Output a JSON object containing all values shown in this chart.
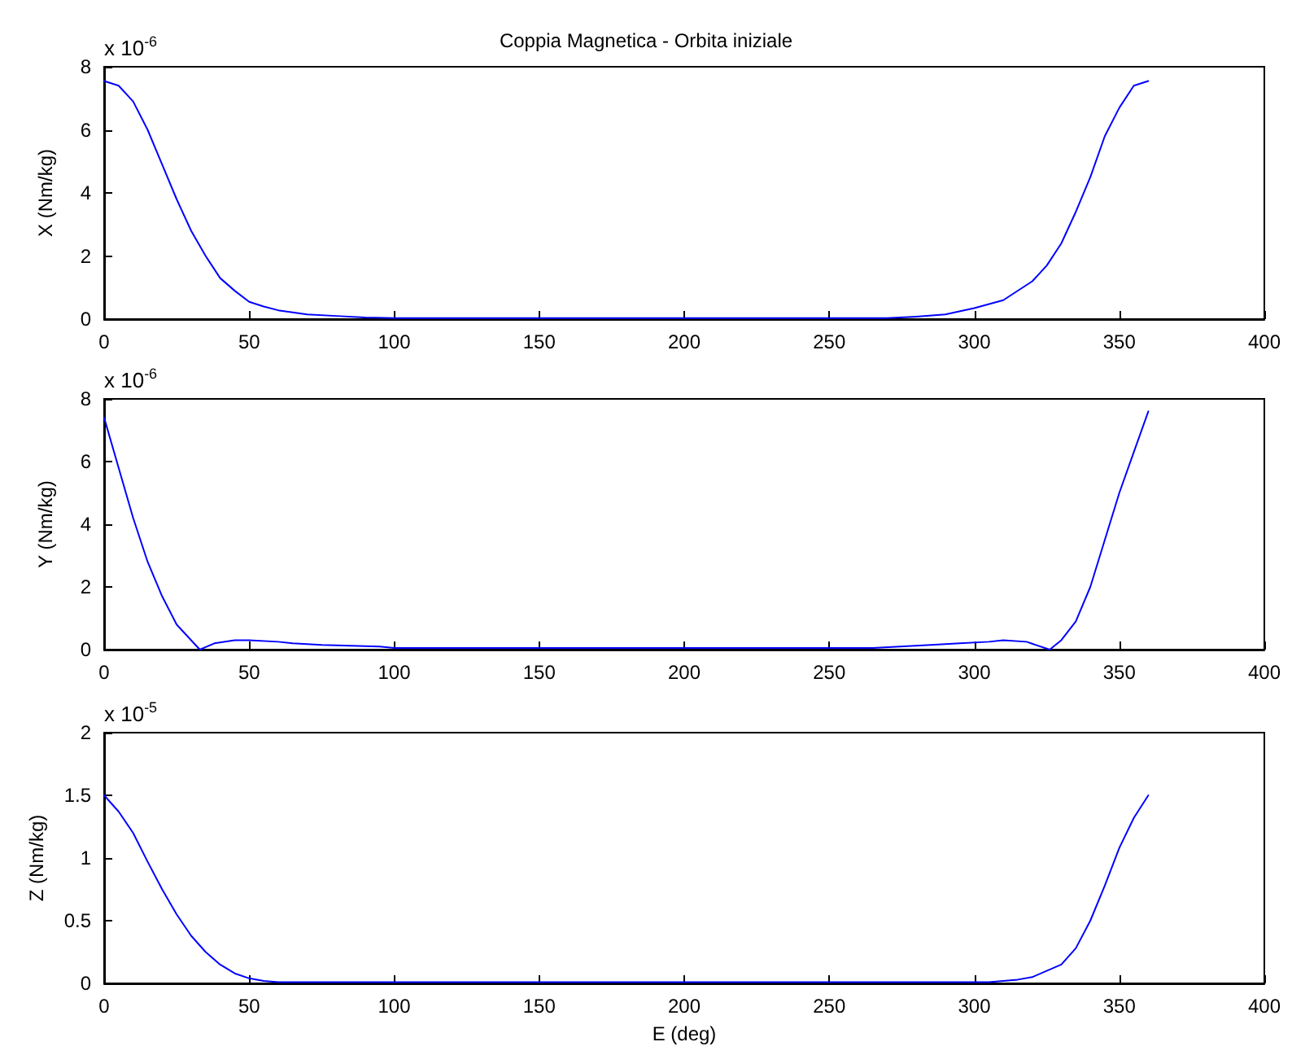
{
  "chart_data": [
    {
      "type": "line",
      "title": "Coppia Magnetica - Orbita iniziale",
      "ylabel": "X (Nm/kg)",
      "annotations": [
        "x 10$^{-6}$"
      ],
      "xlim": [
        0,
        400
      ],
      "xticks": [
        0,
        50,
        100,
        150,
        200,
        250,
        300,
        350,
        400
      ],
      "ylim": [
        0,
        8
      ],
      "yticks": [
        0,
        2,
        4,
        6,
        8
      ],
      "grid": false,
      "marker": "none",
      "line_style": "solid",
      "series": [
        {
          "color": "#0000ff",
          "x": [
            0,
            5,
            10,
            15,
            20,
            25,
            30,
            35,
            40,
            45,
            50,
            55,
            60,
            70,
            80,
            90,
            100,
            150,
            200,
            250,
            270,
            280,
            290,
            300,
            310,
            320,
            325,
            330,
            335,
            340,
            345,
            350,
            355,
            360
          ],
          "values": [
            7.55,
            7.4,
            6.9,
            6.0,
            4.9,
            3.8,
            2.8,
            2.0,
            1.3,
            0.9,
            0.55,
            0.4,
            0.28,
            0.15,
            0.1,
            0.05,
            0.03,
            0.03,
            0.03,
            0.03,
            0.03,
            0.08,
            0.15,
            0.35,
            0.6,
            1.2,
            1.7,
            2.4,
            3.4,
            4.5,
            5.8,
            6.7,
            7.4,
            7.55
          ]
        }
      ]
    },
    {
      "type": "line",
      "ylabel": "Y (Nm/kg)",
      "annotations": [
        "x 10$^{-6}$"
      ],
      "xlim": [
        0,
        400
      ],
      "xticks": [
        0,
        50,
        100,
        150,
        200,
        250,
        300,
        350,
        400
      ],
      "ylim": [
        0,
        8
      ],
      "yticks": [
        0,
        2,
        4,
        6,
        8
      ],
      "grid": false,
      "marker": "none",
      "line_style": "solid",
      "series": [
        {
          "color": "#0000ff",
          "x": [
            0,
            5,
            10,
            15,
            20,
            25,
            30,
            33,
            38,
            45,
            50,
            60,
            65,
            75,
            95,
            100,
            150,
            200,
            250,
            265,
            285,
            295,
            305,
            310,
            318,
            326,
            330,
            335,
            340,
            345,
            350,
            355,
            360
          ],
          "values": [
            7.4,
            5.8,
            4.2,
            2.8,
            1.7,
            0.8,
            0.3,
            0.0,
            0.2,
            0.3,
            0.3,
            0.25,
            0.2,
            0.15,
            0.1,
            0.05,
            0.05,
            0.05,
            0.05,
            0.05,
            0.15,
            0.2,
            0.25,
            0.3,
            0.25,
            0.0,
            0.3,
            0.9,
            2.0,
            3.5,
            5.0,
            6.3,
            7.6
          ]
        }
      ]
    },
    {
      "type": "line",
      "ylabel": "Z (Nm/kg)",
      "xlabel": "E (deg)",
      "annotations": [
        "x 10$^{-5}$"
      ],
      "xlim": [
        0,
        400
      ],
      "xticks": [
        0,
        50,
        100,
        150,
        200,
        250,
        300,
        350,
        400
      ],
      "ylim": [
        0,
        2
      ],
      "yticks": [
        0,
        0.5,
        1,
        1.5,
        2
      ],
      "grid": false,
      "marker": "none",
      "line_style": "solid",
      "series": [
        {
          "color": "#0000ff",
          "x": [
            0,
            5,
            10,
            15,
            20,
            25,
            30,
            35,
            40,
            45,
            50,
            55,
            60,
            100,
            150,
            200,
            250,
            300,
            305,
            315,
            320,
            330,
            335,
            340,
            345,
            350,
            355,
            360
          ],
          "values": [
            1.5,
            1.37,
            1.2,
            0.97,
            0.75,
            0.55,
            0.38,
            0.25,
            0.15,
            0.08,
            0.04,
            0.02,
            0.01,
            0.01,
            0.01,
            0.01,
            0.01,
            0.01,
            0.01,
            0.03,
            0.05,
            0.15,
            0.28,
            0.5,
            0.78,
            1.08,
            1.32,
            1.5
          ]
        }
      ]
    }
  ]
}
